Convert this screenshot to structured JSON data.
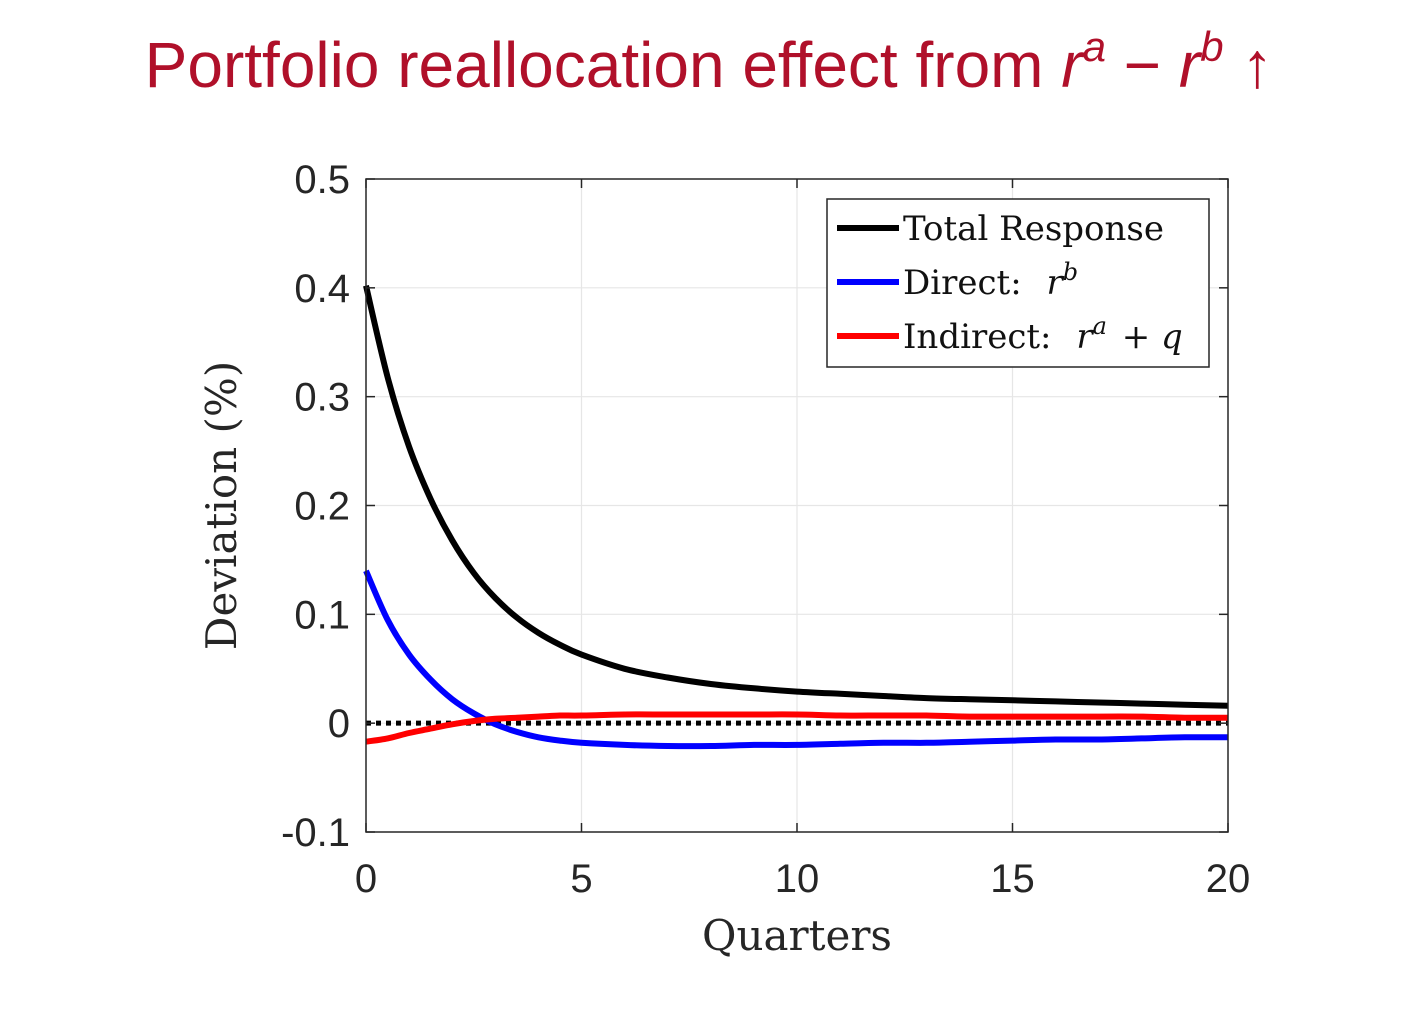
{
  "title": {
    "text": "Portfolio reallocation effect from ",
    "r1": "r",
    "sup1": "a",
    "minus": " − ",
    "r2": "r",
    "sup2": "b",
    "arrow": " ↑"
  },
  "colors": {
    "title": "#b0102a",
    "total": "#000000",
    "direct": "#0000ff",
    "indirect": "#ff0000",
    "grid": "#e6e6e6"
  },
  "chart_data": {
    "type": "line",
    "xlabel": "Quarters",
    "ylabel": "Deviation (%)",
    "xlim": [
      0,
      20
    ],
    "ylim": [
      -0.1,
      0.5
    ],
    "xticks": [
      0,
      5,
      10,
      15,
      20
    ],
    "xtick_labels": [
      "0",
      "5",
      "10",
      "15",
      "20"
    ],
    "yticks": [
      -0.1,
      0,
      0.1,
      0.2,
      0.3,
      0.4,
      0.5
    ],
    "ytick_labels": [
      "-0.1",
      "0",
      "0.1",
      "0.2",
      "0.3",
      "0.4",
      "0.5"
    ],
    "grid": true,
    "legend_position": "top-right",
    "x": [
      0,
      0.5,
      1,
      1.5,
      2,
      2.5,
      3,
      3.5,
      4,
      4.5,
      5,
      6,
      7,
      8,
      9,
      10,
      11,
      12,
      13,
      14,
      15,
      16,
      17,
      18,
      19,
      20
    ],
    "series": [
      {
        "name": "Total Response",
        "label_text": "Total Response",
        "color": "#000000",
        "values": [
          0.402,
          0.318,
          0.254,
          0.206,
          0.168,
          0.138,
          0.115,
          0.097,
          0.083,
          0.072,
          0.063,
          0.05,
          0.042,
          0.036,
          0.032,
          0.029,
          0.027,
          0.025,
          0.023,
          0.022,
          0.021,
          0.02,
          0.019,
          0.018,
          0.017,
          0.016
        ]
      },
      {
        "name": "Direct: r^b",
        "label_text": "Direct: ",
        "label_math": "r",
        "label_sup": "b",
        "color": "#0000ff",
        "values": [
          0.14,
          0.095,
          0.063,
          0.04,
          0.022,
          0.009,
          -0.001,
          -0.008,
          -0.013,
          -0.016,
          -0.018,
          -0.02,
          -0.021,
          -0.021,
          -0.02,
          -0.02,
          -0.019,
          -0.018,
          -0.018,
          -0.017,
          -0.016,
          -0.015,
          -0.015,
          -0.014,
          -0.013,
          -0.013
        ]
      },
      {
        "name": "Indirect: r^a + q",
        "label_text": "Indirect: ",
        "label_math": "r",
        "label_sup": "a",
        "label_tail": " + q",
        "color": "#ff0000",
        "values": [
          -0.017,
          -0.014,
          -0.009,
          -0.005,
          -0.001,
          0.002,
          0.004,
          0.005,
          0.006,
          0.007,
          0.007,
          0.008,
          0.008,
          0.008,
          0.008,
          0.008,
          0.007,
          0.007,
          0.007,
          0.006,
          0.006,
          0.006,
          0.006,
          0.006,
          0.005,
          0.005
        ]
      }
    ],
    "reference_line": {
      "y": 0,
      "style": "dotted",
      "color": "#000000"
    }
  }
}
